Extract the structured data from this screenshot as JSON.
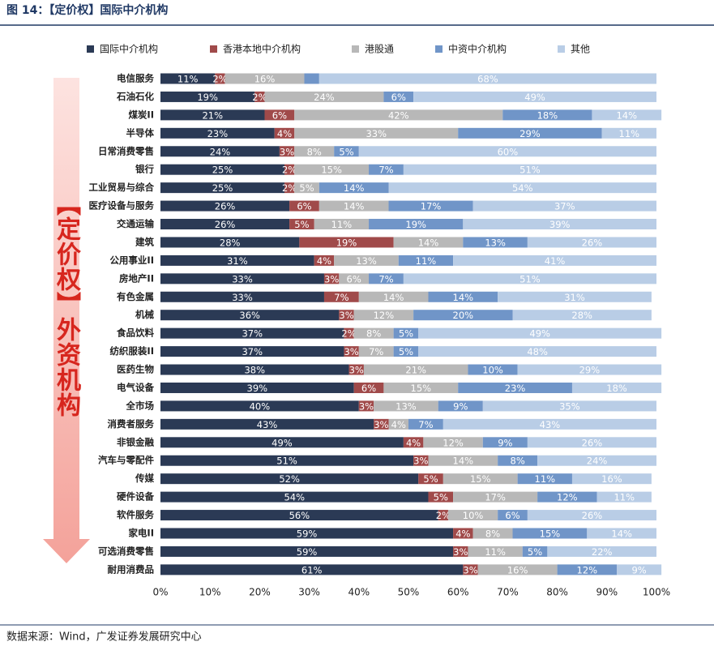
{
  "chart_data": {
    "type": "bar",
    "orientation": "horizontal",
    "stacked": true,
    "title": "图 14：【定价权】国际中介机构",
    "side_label": "【定价权】外资机构",
    "source": "数据来源：Wind，广发证券发展研究中心",
    "categories": [
      "电信服务",
      "石油石化",
      "煤炭II",
      "半导体",
      "日常消费零售",
      "银行",
      "工业贸易与综合",
      "医疗设备与服务",
      "交通运输",
      "建筑",
      "公用事业II",
      "房地产II",
      "有色金属",
      "机械",
      "食品饮料",
      "纺织服装II",
      "医药生物",
      "电气设备",
      "全市场",
      "消费者服务",
      "非银金融",
      "汽车与零配件",
      "传媒",
      "硬件设备",
      "软件服务",
      "家电II",
      "可选消费零售",
      "耐用消费品"
    ],
    "series": [
      {
        "name": "国际中介机构",
        "color": "#2b3a55",
        "values": [
          11,
          19,
          21,
          23,
          24,
          25,
          25,
          26,
          26,
          28,
          31,
          33,
          33,
          36,
          37,
          37,
          38,
          39,
          40,
          43,
          49,
          51,
          52,
          54,
          56,
          59,
          59,
          61
        ],
        "value_labels": [
          "11%",
          "19%",
          "21%",
          "23%",
          "24%",
          "25%",
          "25%",
          "26%",
          "26%",
          "28%",
          "31%",
          "33%",
          "33%",
          "36%",
          "37%",
          "37%",
          "38%",
          "39%",
          "40%",
          "43%",
          "49%",
          "51%",
          "52%",
          "54%",
          "56%",
          "59%",
          "59%",
          "61%"
        ]
      },
      {
        "name": "香港本地中介机构",
        "color": "#a04a4a",
        "values": [
          2,
          2,
          6,
          4,
          3,
          2,
          2,
          6,
          5,
          19,
          4,
          3,
          7,
          3,
          2,
          3,
          3,
          6,
          3,
          3,
          4,
          3,
          5,
          5,
          2,
          4,
          3,
          3
        ],
        "value_labels": [
          "2%",
          "2%",
          "6%",
          "4%",
          "3%",
          "2%",
          "2%",
          "6%",
          "5%",
          "19%",
          "4%",
          "3%",
          "7%",
          "3%",
          "2%",
          "3%",
          "3%",
          "6%",
          "3%",
          "3%",
          "4%",
          "3%",
          "5%",
          "5%",
          "2%",
          "4%",
          "3%",
          "3%"
        ]
      },
      {
        "name": "港股通",
        "color": "#b8b8b8",
        "values": [
          16,
          24,
          42,
          33,
          8,
          15,
          5,
          14,
          11,
          14,
          13,
          6,
          14,
          12,
          8,
          7,
          21,
          15,
          13,
          4,
          12,
          14,
          15,
          17,
          10,
          8,
          11,
          16
        ],
        "value_labels": [
          "16%",
          "24%",
          "42%",
          "33%",
          "8%",
          "15%",
          "5%",
          "14%",
          "11%",
          "14%",
          "13%",
          "6%",
          "14%",
          "12%",
          "8%",
          "7%",
          "21%",
          "15%",
          "13%",
          "4%",
          "12%",
          "14%",
          "15%",
          "17%",
          "10%",
          "8%",
          "11%",
          "16%"
        ]
      },
      {
        "name": "中资中介机构",
        "color": "#7095c8",
        "values": [
          3,
          6,
          18,
          29,
          5,
          7,
          14,
          17,
          19,
          13,
          11,
          7,
          14,
          20,
          5,
          5,
          10,
          23,
          9,
          7,
          9,
          8,
          11,
          12,
          6,
          15,
          5,
          12
        ],
        "value_labels": [
          null,
          "6%",
          "18%",
          "29%",
          "5%",
          "7%",
          "14%",
          "17%",
          "19%",
          "13%",
          "11%",
          "7%",
          "14%",
          "20%",
          "5%",
          "5%",
          "10%",
          "23%",
          "9%",
          "7%",
          "9%",
          "8%",
          "11%",
          "12%",
          "6%",
          "15%",
          "5%",
          "12%"
        ]
      },
      {
        "name": "其他",
        "color": "#b9cde6",
        "values": [
          68,
          49,
          14,
          11,
          60,
          51,
          54,
          37,
          39,
          26,
          41,
          51,
          31,
          28,
          49,
          48,
          29,
          18,
          35,
          43,
          26,
          24,
          16,
          11,
          26,
          14,
          22,
          9
        ],
        "value_labels": [
          "68%",
          "49%",
          "14%",
          "11%",
          "60%",
          "51%",
          "54%",
          "37%",
          "39%",
          "26%",
          "41%",
          "51%",
          "31%",
          "28%",
          "49%",
          "48%",
          "29%",
          "18%",
          "35%",
          "43%",
          "26%",
          "24%",
          "16%",
          "11%",
          "26%",
          "14%",
          "22%",
          "9%"
        ]
      }
    ],
    "xlim": [
      0,
      100
    ],
    "xticks": [
      {
        "value": 0,
        "label": "0%"
      },
      {
        "value": 10,
        "label": "10%"
      },
      {
        "value": 20,
        "label": "20%"
      },
      {
        "value": 30,
        "label": "30%"
      },
      {
        "value": 40,
        "label": "40%"
      },
      {
        "value": 50,
        "label": "50%"
      },
      {
        "value": 60,
        "label": "60%"
      },
      {
        "value": 70,
        "label": "70%"
      },
      {
        "value": 80,
        "label": "80%"
      },
      {
        "value": 90,
        "label": "90%"
      },
      {
        "value": 100,
        "label": "100%"
      }
    ],
    "grid": false,
    "legend": "top"
  }
}
